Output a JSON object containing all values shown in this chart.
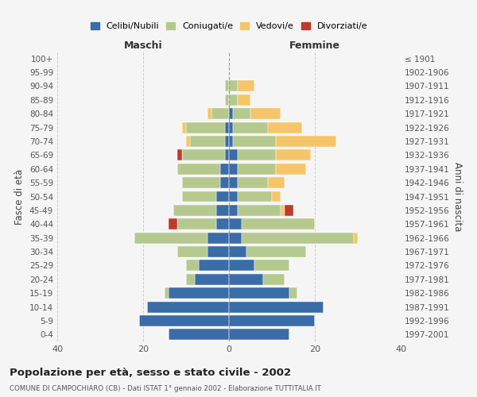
{
  "age_groups": [
    "0-4",
    "5-9",
    "10-14",
    "15-19",
    "20-24",
    "25-29",
    "30-34",
    "35-39",
    "40-44",
    "45-49",
    "50-54",
    "55-59",
    "60-64",
    "65-69",
    "70-74",
    "75-79",
    "80-84",
    "85-89",
    "90-94",
    "95-99",
    "100+"
  ],
  "birth_years": [
    "1997-2001",
    "1992-1996",
    "1987-1991",
    "1982-1986",
    "1977-1981",
    "1972-1976",
    "1967-1971",
    "1962-1966",
    "1957-1961",
    "1952-1956",
    "1947-1951",
    "1942-1946",
    "1937-1941",
    "1932-1936",
    "1927-1931",
    "1922-1926",
    "1917-1921",
    "1912-1916",
    "1907-1911",
    "1902-1906",
    "≤ 1901"
  ],
  "colors": {
    "celibi": "#3A6CA8",
    "coniugati": "#B5C98E",
    "vedovi": "#F5C56A",
    "divorziati": "#C0392B"
  },
  "male": {
    "celibi": [
      14,
      21,
      19,
      14,
      8,
      7,
      5,
      5,
      3,
      3,
      3,
      2,
      2,
      1,
      1,
      1,
      0,
      0,
      0,
      0,
      0
    ],
    "coniugati": [
      0,
      0,
      0,
      1,
      2,
      3,
      7,
      17,
      9,
      10,
      8,
      9,
      10,
      10,
      8,
      9,
      4,
      1,
      1,
      0,
      0
    ],
    "vedovi": [
      0,
      0,
      0,
      0,
      0,
      0,
      0,
      0,
      0,
      0,
      0,
      0,
      0,
      0,
      1,
      1,
      1,
      0,
      0,
      0,
      0
    ],
    "divorziati": [
      0,
      0,
      0,
      0,
      0,
      0,
      0,
      0,
      2,
      0,
      0,
      0,
      0,
      1,
      0,
      0,
      0,
      0,
      0,
      0,
      0
    ]
  },
  "female": {
    "celibi": [
      14,
      20,
      22,
      14,
      8,
      6,
      4,
      3,
      3,
      2,
      2,
      2,
      2,
      2,
      1,
      1,
      1,
      0,
      0,
      0,
      0
    ],
    "coniugati": [
      0,
      0,
      0,
      2,
      5,
      8,
      14,
      26,
      17,
      10,
      8,
      7,
      9,
      9,
      10,
      8,
      4,
      2,
      2,
      0,
      0
    ],
    "vedovi": [
      0,
      0,
      0,
      0,
      0,
      0,
      0,
      1,
      0,
      1,
      2,
      4,
      7,
      8,
      14,
      8,
      7,
      3,
      4,
      0,
      0
    ],
    "divorziati": [
      0,
      0,
      0,
      0,
      0,
      0,
      0,
      0,
      0,
      2,
      0,
      0,
      0,
      0,
      0,
      0,
      0,
      0,
      0,
      0,
      0
    ]
  },
  "title": "Popolazione per età, sesso e stato civile - 2002",
  "subtitle": "COMUNE DI CAMPOCHIARO (CB) - Dati ISTAT 1° gennaio 2002 - Elaborazione TUTTITALIA.IT",
  "ylabel": "Fasce di età",
  "ylabel_right": "Anni di nascita",
  "xlabel_left": "Maschi",
  "xlabel_right": "Femmine",
  "xlim": 40,
  "legend_labels": [
    "Celibi/Nubili",
    "Coniugati/e",
    "Vedovi/e",
    "Divorziati/e"
  ],
  "bg_color": "#F5F5F5",
  "grid_color": "#CCCCCC"
}
